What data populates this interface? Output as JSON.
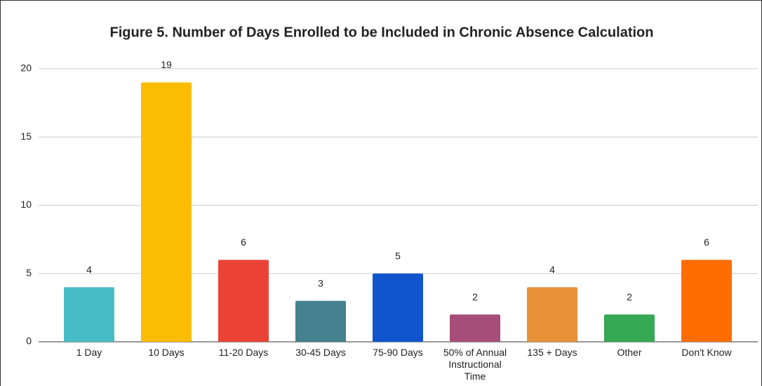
{
  "chart_data": {
    "type": "bar",
    "title": "Figure 5. Number of Days Enrolled to be Included in Chronic Absence Calculation",
    "categories": [
      "1 Day",
      "10 Days",
      "11-20 Days",
      "30-45 Days",
      "75-90 Days",
      "50% of Annual Instructional Time",
      "135 + Days",
      "Other",
      "Don't Know"
    ],
    "values": [
      4,
      19,
      6,
      3,
      5,
      2,
      4,
      2,
      6
    ],
    "colors": [
      "#46bdc6",
      "#fbbc04",
      "#ea4335",
      "#45818e",
      "#1155cc",
      "#a64d79",
      "#e69138",
      "#34a853",
      "#ff6d01"
    ],
    "ylim": [
      0,
      20
    ],
    "yticks": [
      0,
      5,
      10,
      15,
      20
    ],
    "grid": true
  }
}
